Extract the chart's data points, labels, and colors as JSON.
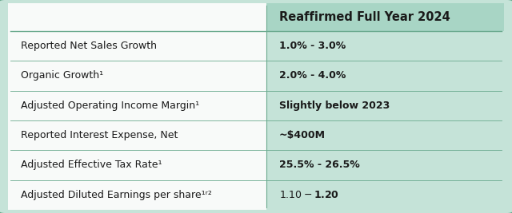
{
  "header_col1": "",
  "header_col2": "Reaffirmed Full Year 2024",
  "rows": [
    [
      "Reported Net Sales Growth",
      "1.0% - 3.0%",
      false
    ],
    [
      "Organic Growth¹",
      "2.0% - 4.0%",
      false
    ],
    [
      "Adjusted Operating Income Margin¹",
      "Slightly below 2023",
      false
    ],
    [
      "Reported Interest Expense, Net",
      "~$400M",
      false
    ],
    [
      "Adjusted Effective Tax Rate¹",
      "25.5% - 26.5%",
      false
    ],
    [
      "Adjusted Diluted Earnings per share¹ʳ²",
      "$1.10 - $1.20",
      false
    ]
  ],
  "col_split": 0.52,
  "bg_color": "#f0f7f4",
  "header_bg": "#a8d5c5",
  "row_bg_right": "#c5e3d8",
  "row_bg_left": "#f8faf9",
  "border_color": "#6aaa8e",
  "header_text_color": "#1a1a1a",
  "row_text_color": "#1a1a1a",
  "header_fontsize": 10.5,
  "row_fontsize": 9.0,
  "bold_rows": [
    2,
    5
  ]
}
